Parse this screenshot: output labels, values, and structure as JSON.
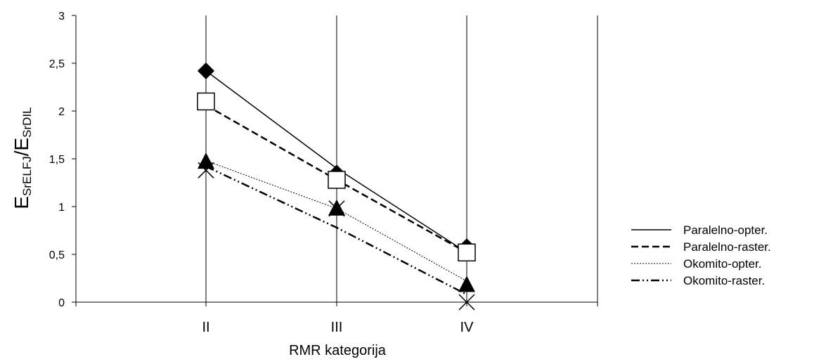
{
  "chart_data": {
    "type": "line",
    "categories": [
      "II",
      "III",
      "IV"
    ],
    "xlabel": "RMR kategorija",
    "ylabel": {
      "base": "E",
      "sub1": "SrELFJ",
      "sep": "/E",
      "sub2": "SrDIL"
    },
    "ylim": [
      0,
      3
    ],
    "yticks": [
      "0",
      "0,5",
      "1",
      "1,5",
      "2",
      "2,5",
      "3"
    ],
    "ytick_values": [
      0,
      0.5,
      1,
      1.5,
      2,
      2.5,
      3
    ],
    "grid": "vertical",
    "legend_position": "right",
    "series": [
      {
        "name": "Paralelno-opter.",
        "marker": "diamond",
        "dash": "solid",
        "values": [
          2.42,
          1.35,
          0.58
        ],
        "line": [
          2.42,
          1.4,
          0.52
        ]
      },
      {
        "name": "Paralelno-raster.",
        "marker": "square",
        "dash": "dash",
        "values": [
          2.1,
          1.28,
          0.52
        ],
        "line": [
          2.06,
          1.28,
          0.52
        ]
      },
      {
        "name": "Okomito-opter.",
        "marker": "triangle",
        "dash": "dot",
        "values": [
          1.47,
          0.98,
          0.18
        ],
        "line": [
          1.48,
          0.98,
          0.22
        ]
      },
      {
        "name": "Okomito-raster.",
        "marker": "x",
        "dash": "dashdot",
        "values": [
          1.38,
          0.98,
          0.0
        ],
        "line": [
          1.42,
          0.78,
          0.08
        ]
      }
    ]
  }
}
